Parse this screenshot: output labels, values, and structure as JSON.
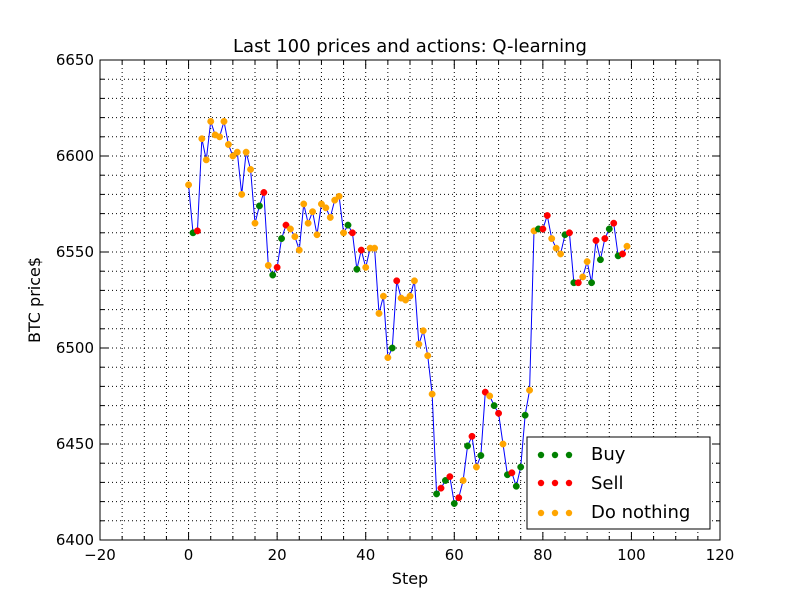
{
  "chart_data": {
    "type": "scatter",
    "title": "Last 100 prices and actions: Q-learning",
    "xlabel": "Step",
    "ylabel": "BTC price$",
    "xlim": [
      -20,
      120
    ],
    "ylim": [
      6400,
      6650
    ],
    "xticks": [
      -20,
      0,
      20,
      40,
      60,
      80,
      100,
      120
    ],
    "yticks": [
      6400,
      6450,
      6500,
      6550,
      6600,
      6650
    ],
    "xtick_labels": [
      "−20",
      "0",
      "20",
      "40",
      "60",
      "80",
      "100",
      "120"
    ],
    "ytick_labels": [
      "6400",
      "6450",
      "6500",
      "6550",
      "6600",
      "6650"
    ],
    "grid": true,
    "legend_position": "lower-right",
    "line": {
      "color": "#0000ff"
    },
    "prices": [
      6585,
      6560,
      6561,
      6609,
      6598,
      6618,
      6611,
      6610,
      6618,
      6606,
      6600,
      6602,
      6580,
      6602,
      6593,
      6565,
      6574,
      6581,
      6543,
      6538,
      6542,
      6557,
      6564,
      6562,
      6558,
      6551,
      6575,
      6565,
      6571,
      6559,
      6575,
      6573,
      6568,
      6577,
      6579,
      6560,
      6564,
      6560,
      6541,
      6551,
      6542,
      6552,
      6552,
      6518,
      6527,
      6495,
      6500,
      6535,
      6526,
      6525,
      6527,
      6535,
      6502,
      6509,
      6496,
      6476,
      6424,
      6427,
      6431,
      6433,
      6419,
      6422,
      6431,
      6449,
      6454,
      6438,
      6444,
      6477,
      6475,
      6470,
      6466,
      6450,
      6434,
      6435,
      6428,
      6438,
      6465,
      6478,
      6561,
      6562,
      6562,
      6569,
      6557,
      6552,
      6549,
      6559,
      6560,
      6534,
      6534,
      6537,
      6545,
      6534,
      6556,
      6546,
      6557,
      6562,
      6565,
      6548,
      6549,
      6553
    ],
    "actions": [
      "n",
      "b",
      "s",
      "n",
      "n",
      "n",
      "n",
      "n",
      "n",
      "n",
      "n",
      "n",
      "n",
      "n",
      "n",
      "n",
      "b",
      "s",
      "n",
      "b",
      "s",
      "b",
      "s",
      "n",
      "n",
      "n",
      "n",
      "n",
      "n",
      "n",
      "n",
      "n",
      "n",
      "n",
      "n",
      "n",
      "b",
      "s",
      "b",
      "s",
      "n",
      "n",
      "n",
      "n",
      "n",
      "n",
      "b",
      "s",
      "n",
      "n",
      "n",
      "n",
      "n",
      "n",
      "n",
      "n",
      "b",
      "s",
      "b",
      "s",
      "b",
      "s",
      "n",
      "b",
      "s",
      "n",
      "b",
      "s",
      "n",
      "b",
      "s",
      "n",
      "b",
      "s",
      "b",
      "b",
      "b",
      "n",
      "n",
      "b",
      "s",
      "s",
      "n",
      "n",
      "n",
      "b",
      "s",
      "b",
      "s",
      "n",
      "n",
      "b",
      "s",
      "b",
      "s",
      "b",
      "s",
      "b",
      "s",
      "n"
    ],
    "series": [
      {
        "name": "Buy",
        "color": "#008000"
      },
      {
        "name": "Sell",
        "color": "#ff0000"
      },
      {
        "name": "Do nothing",
        "color": "#ffa500"
      }
    ]
  }
}
